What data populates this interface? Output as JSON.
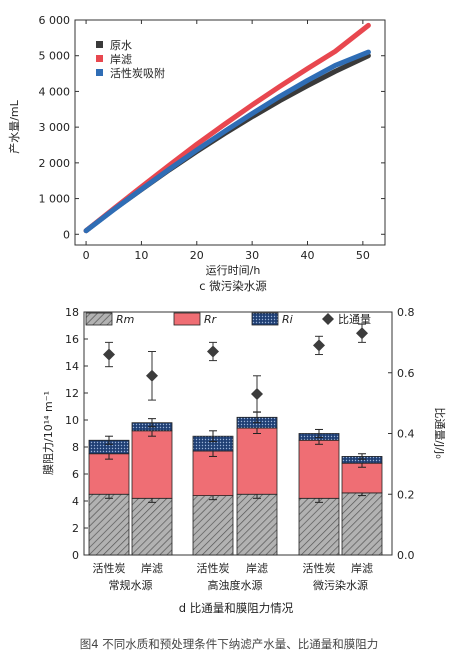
{
  "figure": {
    "caption": "图4 不同水质和预处理条件下纳滤产水量、比通量和膜阻力"
  },
  "chart_data": [
    {
      "type": "line",
      "title": "c 微污染水源",
      "xlabel": "运行时间/h",
      "ylabel": "产水量/mL",
      "xlim": [
        -2,
        54
      ],
      "ylim": [
        -300,
        6000
      ],
      "xticks": [
        0,
        10,
        20,
        30,
        40,
        50
      ],
      "yticks": [
        0,
        1000,
        2000,
        3000,
        4000,
        5000,
        6000
      ],
      "ytick_labels": [
        "0",
        "1 000",
        "2 000",
        "3 000",
        "4 000",
        "5 000",
        "6 000"
      ],
      "grid": false,
      "legend_position": "top-left",
      "series": [
        {
          "name": "原水",
          "color": "#3a3a3a",
          "x": [
            0,
            5,
            10,
            15,
            20,
            25,
            30,
            35,
            40,
            45,
            51
          ],
          "y": [
            100,
            700,
            1250,
            1800,
            2320,
            2820,
            3290,
            3740,
            4160,
            4560,
            5000
          ]
        },
        {
          "name": "岸滤",
          "color": "#e8474f",
          "x": [
            0,
            5,
            10,
            15,
            20,
            25,
            30,
            35,
            40,
            45,
            51
          ],
          "y": [
            100,
            720,
            1330,
            1930,
            2520,
            3080,
            3620,
            4140,
            4640,
            5120,
            5850
          ]
        },
        {
          "name": "活性炭吸附",
          "color": "#2f6db5",
          "x": [
            0,
            5,
            10,
            15,
            20,
            25,
            30,
            35,
            40,
            45,
            51
          ],
          "y": [
            100,
            690,
            1260,
            1820,
            2360,
            2880,
            3380,
            3860,
            4310,
            4730,
            5100
          ]
        }
      ]
    },
    {
      "type": "bar",
      "title": "d 比通量和膜阻力情况",
      "ylabel_left": "膜阻力/10¹⁴ m⁻¹",
      "ylabel_right": "比通量/J/J₀",
      "ylim_left": [
        0,
        18
      ],
      "ylim_right": [
        0,
        0.8
      ],
      "yticks_left": [
        0,
        2,
        4,
        6,
        8,
        10,
        12,
        14,
        16,
        18
      ],
      "yticks_right": [
        0.0,
        0.2,
        0.4,
        0.6,
        0.8
      ],
      "ytick_labels_right": [
        "0.0",
        "0.2",
        "0.4",
        "0.6",
        "0.8"
      ],
      "categories": [
        "活性炭",
        "岸滤",
        "活性炭",
        "岸滤",
        "活性炭",
        "岸滤"
      ],
      "groups": [
        "常规水源",
        "高浊度水源",
        "微污染水源"
      ],
      "legend_position": "top",
      "stack": [
        {
          "name": "Rm",
          "color": "#a9a9a9",
          "values": [
            4.5,
            4.2,
            4.4,
            4.5,
            4.2,
            4.6
          ],
          "err": [
            0.3,
            0.3,
            0.3,
            0.3,
            0.3,
            0.2
          ]
        },
        {
          "name": "Rr",
          "color": "#ef6e74",
          "values": [
            3.0,
            5.0,
            3.3,
            4.9,
            4.3,
            2.2
          ],
          "err": [
            0.4,
            0.4,
            0.4,
            0.4,
            0.3,
            0.3
          ]
        },
        {
          "name": "Ri",
          "color": "#2d4f86",
          "values": [
            1.0,
            0.6,
            1.1,
            0.8,
            0.5,
            0.5
          ],
          "err": [
            0.3,
            0.3,
            0.4,
            0.4,
            0.3,
            0.2
          ]
        }
      ],
      "specific_flux": {
        "name": "比通量",
        "marker": "diamond",
        "values": [
          0.66,
          0.59,
          0.67,
          0.53,
          0.69,
          0.73
        ],
        "err": [
          0.04,
          0.08,
          0.03,
          0.06,
          0.03,
          0.03
        ]
      }
    }
  ]
}
